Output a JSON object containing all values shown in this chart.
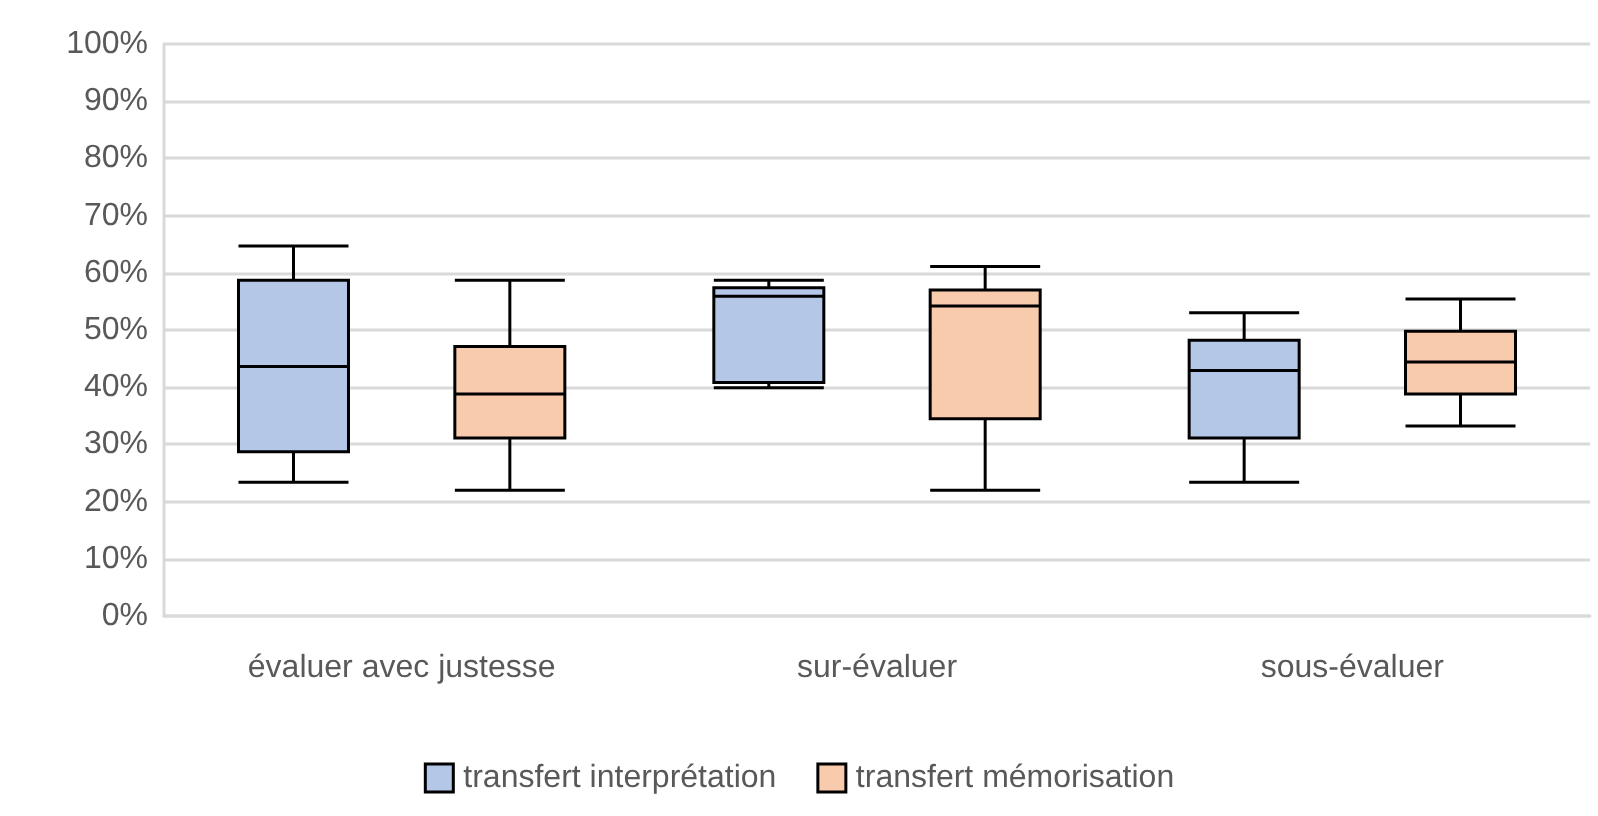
{
  "chart_data": {
    "type": "box",
    "categories": [
      "évaluer avec justesse",
      "sur-évaluer",
      "sous-évaluer"
    ],
    "series": [
      {
        "name": "transfert interprétation",
        "color": "#b4c7e7",
        "boxes": [
          {
            "low": 23.4,
            "q1": 28.7,
            "median": 43.6,
            "q3": 58.7,
            "high": 64.7
          },
          {
            "low": 39.9,
            "q1": 40.8,
            "median": 55.9,
            "q3": 57.4,
            "high": 58.7
          },
          {
            "low": 23.4,
            "q1": 31.1,
            "median": 42.9,
            "q3": 48.2,
            "high": 53.0
          }
        ]
      },
      {
        "name": "transfert mémorisation",
        "color": "#f8cbad",
        "boxes": [
          {
            "low": 22.0,
            "q1": 31.1,
            "median": 38.8,
            "q3": 47.1,
            "high": 58.7
          },
          {
            "low": 22.0,
            "q1": 34.5,
            "median": 54.2,
            "q3": 57.0,
            "high": 61.1
          },
          {
            "low": 33.2,
            "q1": 38.8,
            "median": 44.4,
            "q3": 49.8,
            "high": 55.4
          }
        ]
      }
    ],
    "ylim": [
      0,
      100
    ],
    "yticks": [
      {
        "value": 0,
        "label": "0%"
      },
      {
        "value": 10,
        "label": "10%"
      },
      {
        "value": 20,
        "label": "20%"
      },
      {
        "value": 30,
        "label": "30%"
      },
      {
        "value": 40,
        "label": "40%"
      },
      {
        "value": 50,
        "label": "50%"
      },
      {
        "value": 60,
        "label": "60%"
      },
      {
        "value": 70,
        "label": "70%"
      },
      {
        "value": 80,
        "label": "80%"
      },
      {
        "value": 90,
        "label": "90%"
      },
      {
        "value": 100,
        "label": "100%"
      }
    ],
    "grid": "y",
    "legend": "bottom"
  }
}
